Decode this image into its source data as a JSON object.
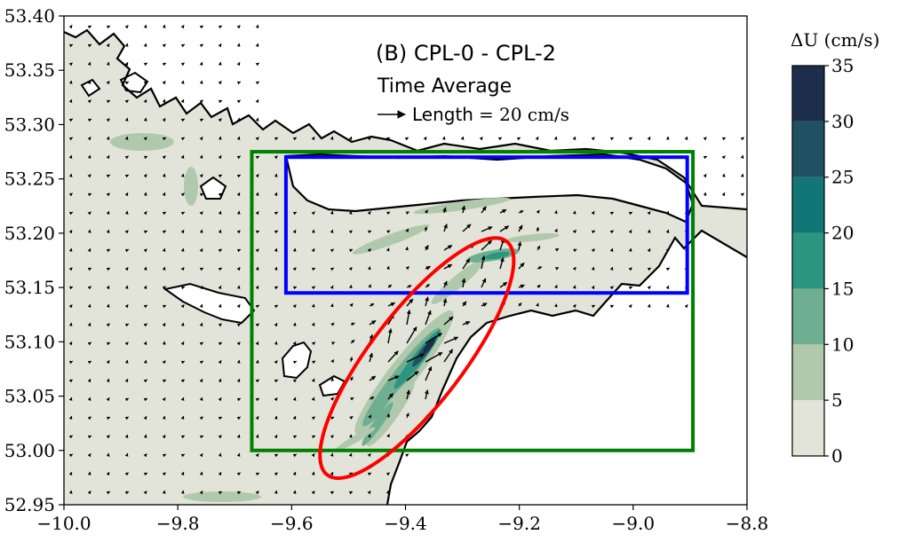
{
  "chart_data": {
    "type": "contour-map",
    "annotation": {
      "title": "(B) CPL-0 - CPL-2",
      "subtitle": "Time Average",
      "length_key_label": "Length",
      "length_key_value": "= 20 cm/s"
    },
    "xlim": [
      -10.0,
      -8.8
    ],
    "ylim": [
      52.95,
      53.4
    ],
    "x_ticks": [
      -10.0,
      -9.8,
      -9.6,
      -9.4,
      -9.2,
      -9.0,
      -8.8
    ],
    "x_tick_labels": [
      "−10.0",
      "−9.8",
      "−9.6",
      "−9.4",
      "−9.2",
      "−9.0",
      "−8.8"
    ],
    "y_ticks": [
      52.95,
      53.0,
      53.05,
      53.1,
      53.15,
      53.2,
      53.25,
      53.3,
      53.35,
      53.4
    ],
    "y_tick_labels": [
      "52.95",
      "53.00",
      "53.05",
      "53.10",
      "53.15",
      "53.20",
      "53.25",
      "53.30",
      "53.35",
      "53.40"
    ],
    "colorbar": {
      "title": "ΔU (cm/s)",
      "levels": [
        0,
        5,
        10,
        15,
        20,
        25,
        30,
        35
      ],
      "tick_labels": [
        "0",
        "5",
        "10",
        "15",
        "20",
        "25",
        "30",
        "35"
      ],
      "colors": [
        "#e3e4d9",
        "#b0c9ac",
        "#6fae91",
        "#2b9580",
        "#137676",
        "#1f5163",
        "#1c2e4c"
      ]
    },
    "regions": [
      {
        "shape": "rectangle",
        "color": "#008000",
        "lon": [
          -9.67,
          -8.895
        ],
        "lat": [
          53.0,
          53.275
        ]
      },
      {
        "shape": "rectangle",
        "color": "#0000ff",
        "lon": [
          -9.61,
          -8.905
        ],
        "lat": [
          53.145,
          53.27
        ]
      },
      {
        "shape": "ellipse",
        "color": "#ff0000",
        "center": [
          -9.38,
          53.085
        ],
        "endpoints": [
          [
            -9.54,
            52.98
          ],
          [
            -9.225,
            53.195
          ]
        ]
      }
    ],
    "hotspots": [
      {
        "lon": -9.38,
        "lat": 53.09,
        "value": 30
      },
      {
        "lon": -9.27,
        "lat": 53.18,
        "value": 20
      }
    ]
  }
}
